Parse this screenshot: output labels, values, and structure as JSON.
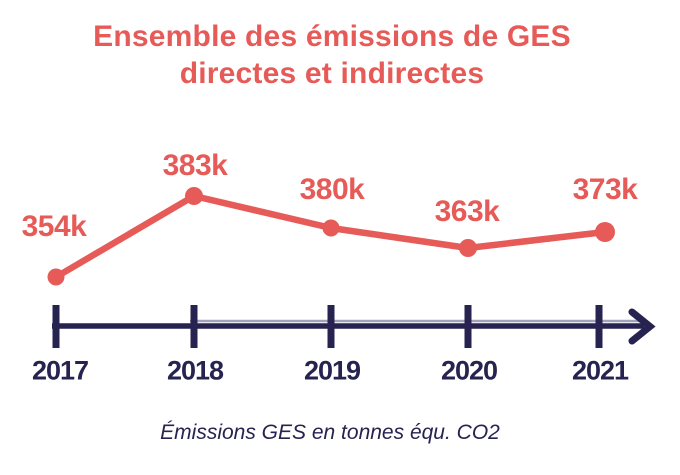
{
  "title": {
    "line1": "Ensemble des émissions de GES",
    "line2": "directes et indirectes"
  },
  "chart_data": {
    "type": "line",
    "title": "Ensemble des émissions de GES directes et indirectes",
    "caption": "Émissions GES en tonnes équ. CO2",
    "categories": [
      "2017",
      "2018",
      "2019",
      "2020",
      "2021"
    ],
    "values": [
      354000,
      383000,
      380000,
      363000,
      373000
    ],
    "value_labels": [
      "354k",
      "383k",
      "380k",
      "363k",
      "373k"
    ],
    "unit": "tonnes équ. CO2",
    "xlabel": "",
    "ylabel": "",
    "grid": false,
    "legend_position": "none",
    "x_axis_style": "timeline-arrow",
    "colors": {
      "series": "#E65A57",
      "axis": "#262350",
      "axis_light": "#A3A2BC",
      "background": "#FFFFFF"
    }
  }
}
